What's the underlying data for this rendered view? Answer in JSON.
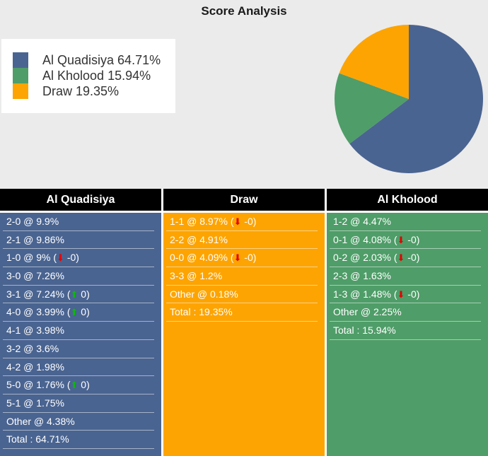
{
  "title": "Score Analysis",
  "theme": {
    "background": "#ebebeb",
    "legend_background": "#ffffff",
    "header_background": "#000000",
    "row_text": "#ffffff",
    "home_color": "#4a6491",
    "away_color": "#4f9d68",
    "draw_color": "#fda402",
    "arrow_up_color": "#0eb50e",
    "arrow_down_color": "#e60000"
  },
  "icons": {
    "up_arrow": "⬆",
    "down_arrow": "⬇"
  },
  "punctuation": {
    "trend_open": "(",
    "trend_close": ")"
  },
  "legend": {
    "items": [
      {
        "label": "Al Quadisiya 64.71%",
        "color": "#4a6491"
      },
      {
        "label": "Al Kholood 15.94%",
        "color": "#4f9d68"
      },
      {
        "label": "Draw 19.35%",
        "color": "#fda402"
      }
    ]
  },
  "chart_data": {
    "type": "pie",
    "title": "Score Analysis",
    "unit": "%",
    "start_angle_deg": -90,
    "direction": "clockwise",
    "legend_position": "left",
    "slices": [
      {
        "label": "Al Quadisiya",
        "value": 64.71,
        "color": "#4a6491"
      },
      {
        "label": "Al Kholood",
        "value": 15.94,
        "color": "#4f9d68"
      },
      {
        "label": "Draw",
        "value": 19.35,
        "color": "#fda402"
      }
    ]
  },
  "columns": [
    {
      "header": "Al Quadisiya",
      "color": "#4a6491",
      "rows": [
        {
          "text": "2-0 @ 9.9%",
          "trend": null
        },
        {
          "text": "2-1 @ 9.86%",
          "trend": null
        },
        {
          "text": "1-0 @ 9%",
          "trend": {
            "dir": "down",
            "val": "-0"
          }
        },
        {
          "text": "3-0 @ 7.26%",
          "trend": null
        },
        {
          "text": "3-1 @ 7.24%",
          "trend": {
            "dir": "up",
            "val": "0"
          }
        },
        {
          "text": "4-0 @ 3.99%",
          "trend": {
            "dir": "up",
            "val": "0"
          }
        },
        {
          "text": "4-1 @ 3.98%",
          "trend": null
        },
        {
          "text": "3-2 @ 3.6%",
          "trend": null
        },
        {
          "text": "4-2 @ 1.98%",
          "trend": null
        },
        {
          "text": "5-0 @ 1.76%",
          "trend": {
            "dir": "up",
            "val": "0"
          }
        },
        {
          "text": "5-1 @ 1.75%",
          "trend": null
        },
        {
          "text": "Other @ 4.38%",
          "trend": null
        },
        {
          "text": "Total : 64.71%",
          "trend": null
        }
      ]
    },
    {
      "header": "Draw",
      "color": "#fda402",
      "rows": [
        {
          "text": "1-1 @ 8.97%",
          "trend": {
            "dir": "down",
            "val": "-0"
          }
        },
        {
          "text": "2-2 @ 4.91%",
          "trend": null
        },
        {
          "text": "0-0 @ 4.09%",
          "trend": {
            "dir": "down",
            "val": "-0"
          }
        },
        {
          "text": "3-3 @ 1.2%",
          "trend": null
        },
        {
          "text": "Other @ 0.18%",
          "trend": null
        },
        {
          "text": "Total : 19.35%",
          "trend": null
        }
      ]
    },
    {
      "header": "Al Kholood",
      "color": "#4f9d68",
      "rows": [
        {
          "text": "1-2 @ 4.47%",
          "trend": null
        },
        {
          "text": "0-1 @ 4.08%",
          "trend": {
            "dir": "down",
            "val": "-0"
          }
        },
        {
          "text": "0-2 @ 2.03%",
          "trend": {
            "dir": "down",
            "val": "-0"
          }
        },
        {
          "text": "2-3 @ 1.63%",
          "trend": null
        },
        {
          "text": "1-3 @ 1.48%",
          "trend": {
            "dir": "down",
            "val": "-0"
          }
        },
        {
          "text": "Other @ 2.25%",
          "trend": null
        },
        {
          "text": "Total : 15.94%",
          "trend": null
        }
      ]
    }
  ]
}
